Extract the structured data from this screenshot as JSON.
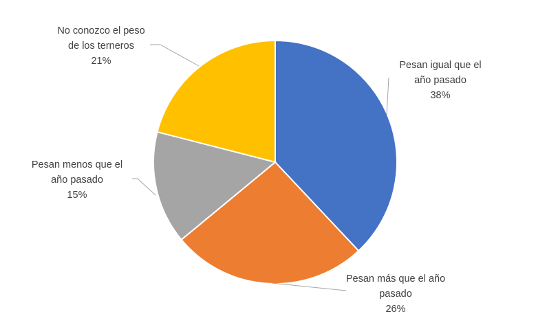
{
  "chart_data": {
    "type": "pie",
    "categories": [
      "Pesan igual que el año pasado",
      "Pesan más que el año pasado",
      "Pesan menos que el año pasado",
      "No conozco el peso de los terneros"
    ],
    "values": [
      38,
      26,
      15,
      21
    ],
    "value_labels": [
      "38%",
      "26%",
      "15%",
      "21%"
    ],
    "colors": [
      "#4472c4",
      "#ed7d31",
      "#a5a5a5",
      "#ffc000"
    ]
  }
}
